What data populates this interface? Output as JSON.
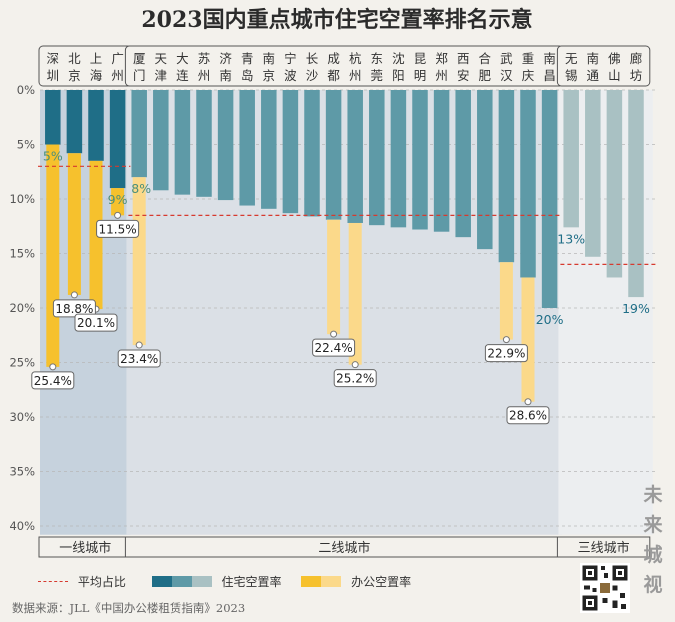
{
  "chart_data": {
    "type": "bar",
    "title": "2023国内重点城市住宅空置率排名示意",
    "y_axis": {
      "min": 0,
      "max": 40,
      "ticks": [
        "0%",
        "5%",
        "10%",
        "15%",
        "20%",
        "25%",
        "30%",
        "35%",
        "40%"
      ],
      "inverted": true
    },
    "groups": [
      {
        "name": "一线城市",
        "cities": [
          "深圳",
          "北京",
          "上海",
          "广州"
        ],
        "avg_residential": 7
      },
      {
        "name": "二线城市",
        "cities": [
          "厦门",
          "天津",
          "大连",
          "苏州",
          "济南",
          "青岛",
          "南京",
          "宁波",
          "长沙",
          "成都",
          "杭州",
          "东莞",
          "沈阳",
          "昆明",
          "郑州",
          "西安",
          "合肥",
          "武汉",
          "重庆",
          "南昌"
        ],
        "avg_residential": 11.5
      },
      {
        "name": "三线城市",
        "cities": [
          "无锡",
          "南通",
          "佛山",
          "廊坊"
        ],
        "avg_residential": 16
      }
    ],
    "series": [
      {
        "name": "住宅空置率",
        "values": [
          5,
          5.8,
          6.5,
          9,
          8,
          9.2,
          9.6,
          9.8,
          10.1,
          10.6,
          10.9,
          11.3,
          11.6,
          11.9,
          12.2,
          12.4,
          12.6,
          12.8,
          13,
          13.5,
          14.6,
          15.8,
          17.2,
          20,
          12.6,
          15.3,
          17.2,
          19
        ]
      },
      {
        "name": "办公空置率",
        "cities": [
          "深圳",
          "北京",
          "上海",
          "广州",
          "厦门",
          "成都",
          "杭州",
          "武汉",
          "重庆"
        ],
        "values": [
          25.4,
          18.8,
          20.1,
          11.5,
          23.4,
          22.4,
          25.2,
          22.9,
          28.6
        ]
      }
    ],
    "residential_labels": [
      {
        "city": "深圳",
        "text": "5%"
      },
      {
        "city": "广州",
        "text": "9%"
      },
      {
        "city": "厦门",
        "text": "8%"
      },
      {
        "city": "南昌",
        "text": "20%"
      },
      {
        "city": "无锡",
        "text": "13%"
      },
      {
        "city": "廊坊",
        "text": "19%"
      }
    ],
    "office_labels": [
      {
        "city": "深圳",
        "text": "25.4%"
      },
      {
        "city": "北京",
        "text": "18.8%"
      },
      {
        "city": "上海",
        "text": "20.1%"
      },
      {
        "city": "广州",
        "text": "11.5%"
      },
      {
        "city": "厦门",
        "text": "23.4%"
      },
      {
        "city": "成都",
        "text": "22.4%"
      },
      {
        "city": "杭州",
        "text": "25.2%"
      },
      {
        "city": "武汉",
        "text": "22.9%"
      },
      {
        "city": "重庆",
        "text": "28.6%"
      }
    ],
    "legend": {
      "avg": "平均占比",
      "residential": "住宅空置率",
      "office": "办公空置率"
    },
    "colors": {
      "tier1_res": "#1f6e87",
      "tier2_res": "#5e9aa7",
      "tier3_res": "#a9c1c3",
      "office": "#f6c12d",
      "office_light": "#fbd98a",
      "avg_line": "#d63a2f",
      "label_blue": "#1f6e87",
      "label_green": "#4d8f7a"
    }
  },
  "source": "数据来源：JLL《中国办公楼租赁指南》2023",
  "watermark": [
    "未",
    "来",
    "城",
    "视"
  ]
}
